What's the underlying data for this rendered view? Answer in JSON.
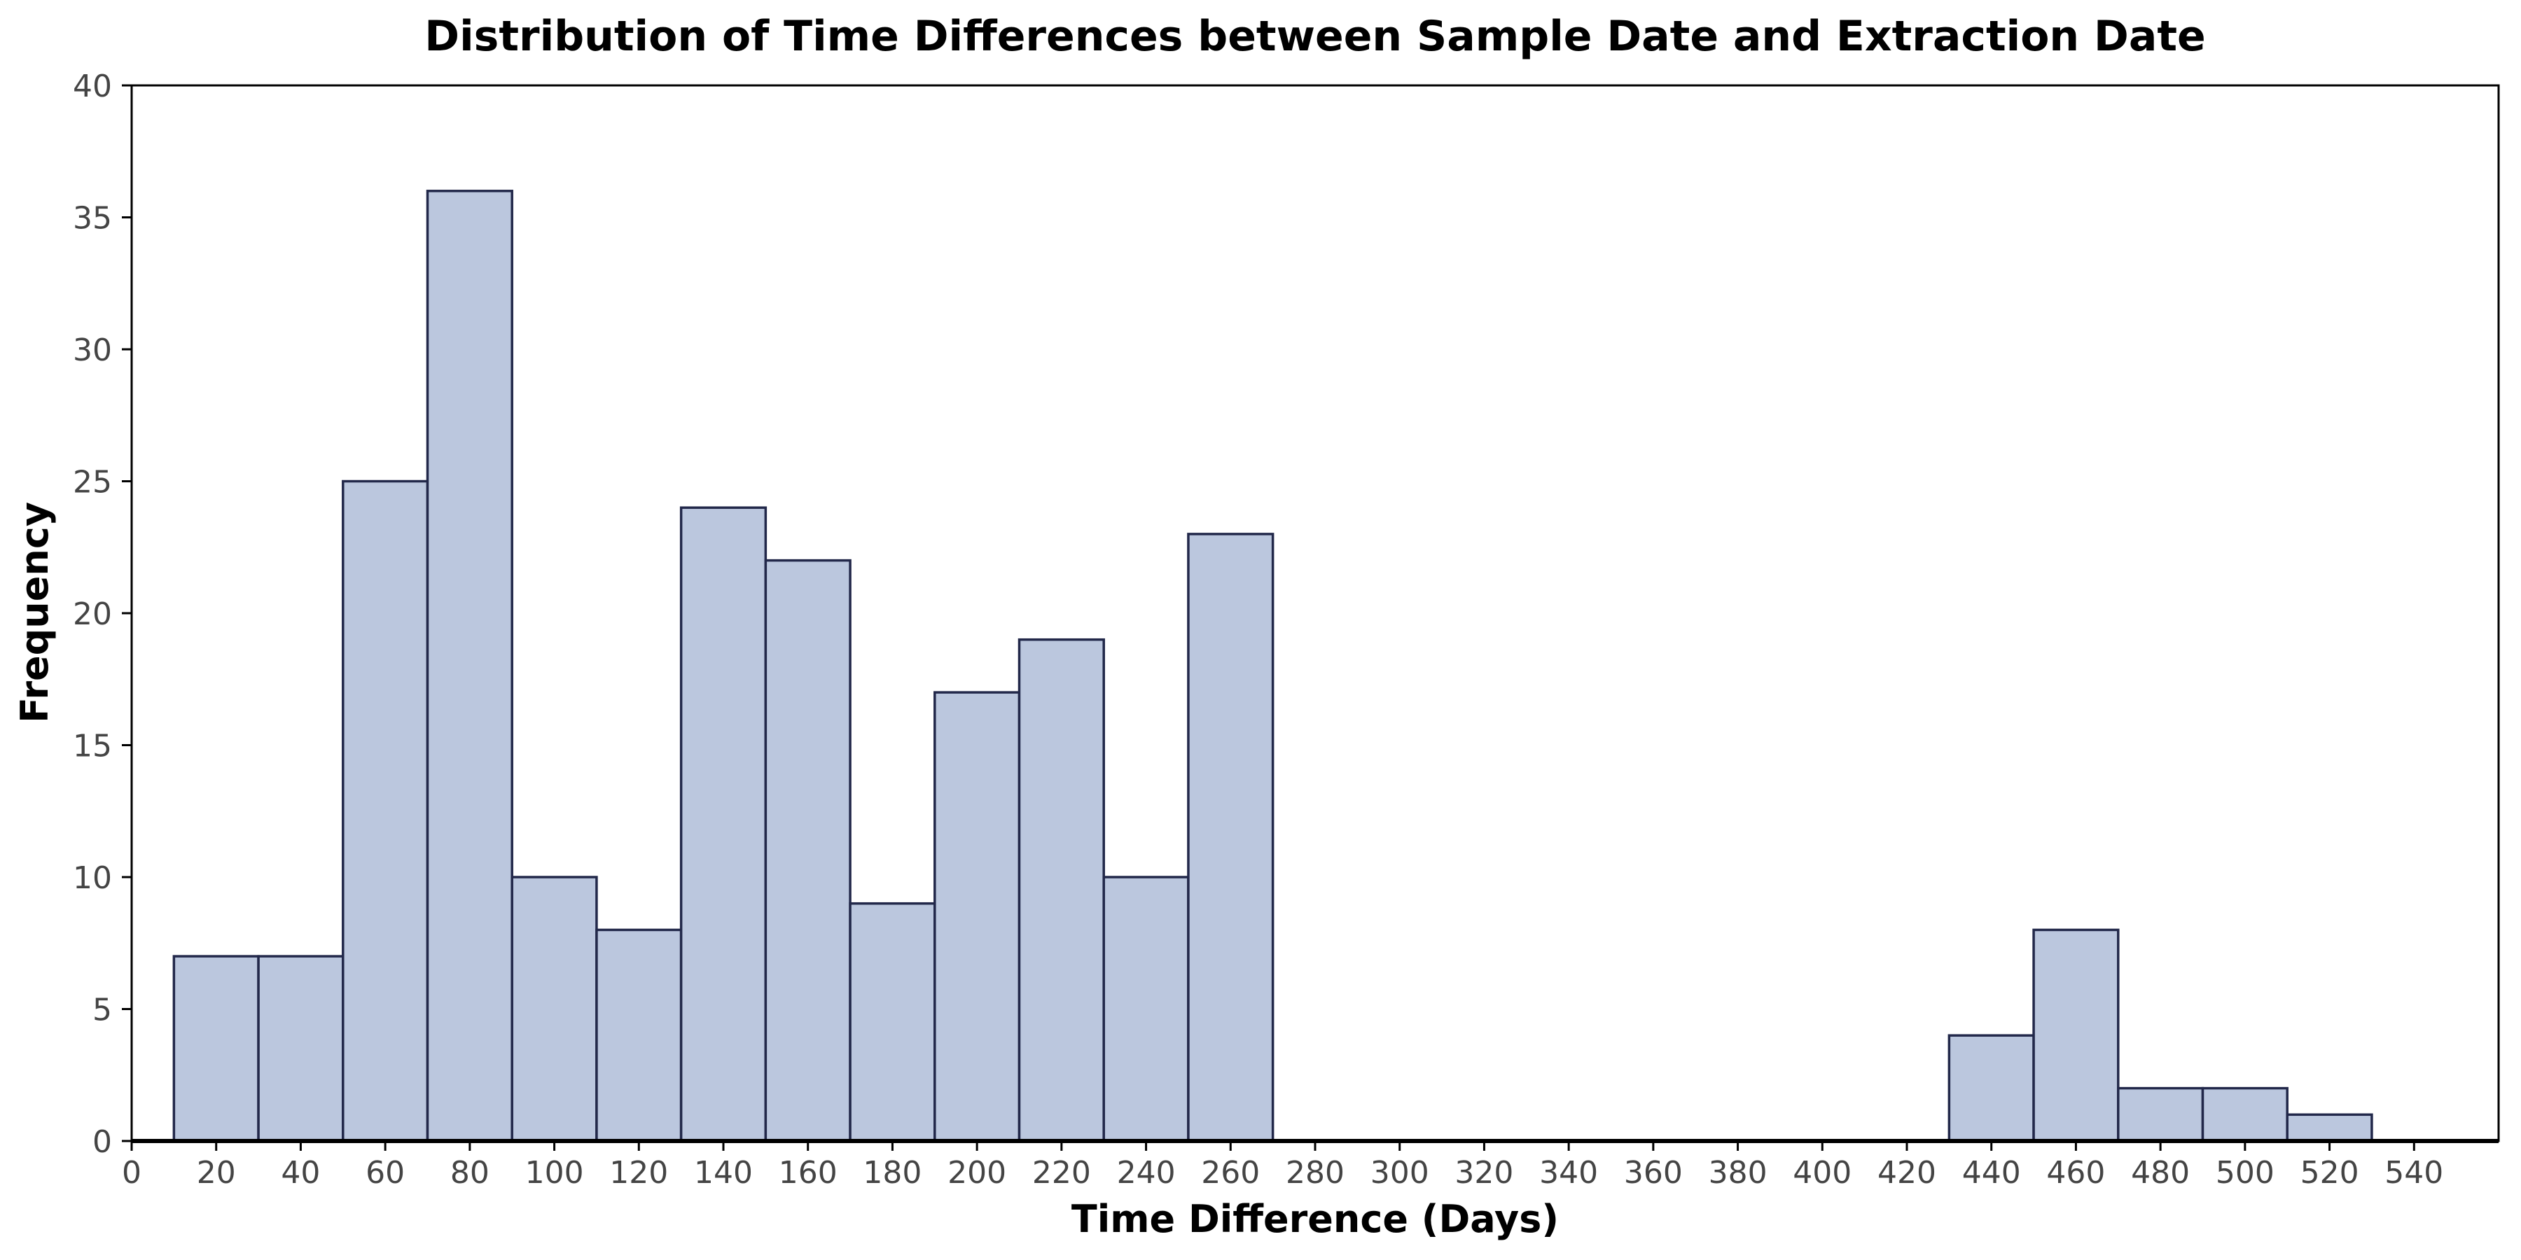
{
  "chart_data": {
    "type": "bar",
    "title": "Distribution of Time Differences between Sample Date and Extraction Date",
    "xlabel": "Time Difference (Days)",
    "ylabel": "Frequency",
    "xlim": [
      0,
      560
    ],
    "ylim": [
      0,
      40
    ],
    "xticks": [
      0,
      20,
      40,
      60,
      80,
      100,
      120,
      140,
      160,
      180,
      200,
      220,
      240,
      260,
      280,
      300,
      320,
      340,
      360,
      380,
      400,
      420,
      440,
      460,
      480,
      500,
      520,
      540
    ],
    "yticks": [
      0,
      5,
      10,
      15,
      20,
      25,
      30,
      35,
      40
    ],
    "grid": false,
    "bin_width": 20,
    "bins": [
      {
        "start": 10,
        "end": 30,
        "count": 7
      },
      {
        "start": 30,
        "end": 50,
        "count": 7
      },
      {
        "start": 50,
        "end": 70,
        "count": 25
      },
      {
        "start": 70,
        "end": 90,
        "count": 36
      },
      {
        "start": 90,
        "end": 110,
        "count": 10
      },
      {
        "start": 110,
        "end": 130,
        "count": 8
      },
      {
        "start": 130,
        "end": 150,
        "count": 24
      },
      {
        "start": 150,
        "end": 170,
        "count": 22
      },
      {
        "start": 170,
        "end": 190,
        "count": 9
      },
      {
        "start": 190,
        "end": 210,
        "count": 17
      },
      {
        "start": 210,
        "end": 230,
        "count": 19
      },
      {
        "start": 230,
        "end": 250,
        "count": 10
      },
      {
        "start": 250,
        "end": 270,
        "count": 23
      },
      {
        "start": 430,
        "end": 450,
        "count": 4
      },
      {
        "start": 450,
        "end": 470,
        "count": 8
      },
      {
        "start": 470,
        "end": 490,
        "count": 2
      },
      {
        "start": 490,
        "end": 510,
        "count": 2
      },
      {
        "start": 510,
        "end": 530,
        "count": 1
      }
    ],
    "colors": {
      "bar_fill": "#bbc7de",
      "bar_edge": "#22284a",
      "axis": "#000000",
      "tick_text": "#444444"
    }
  }
}
